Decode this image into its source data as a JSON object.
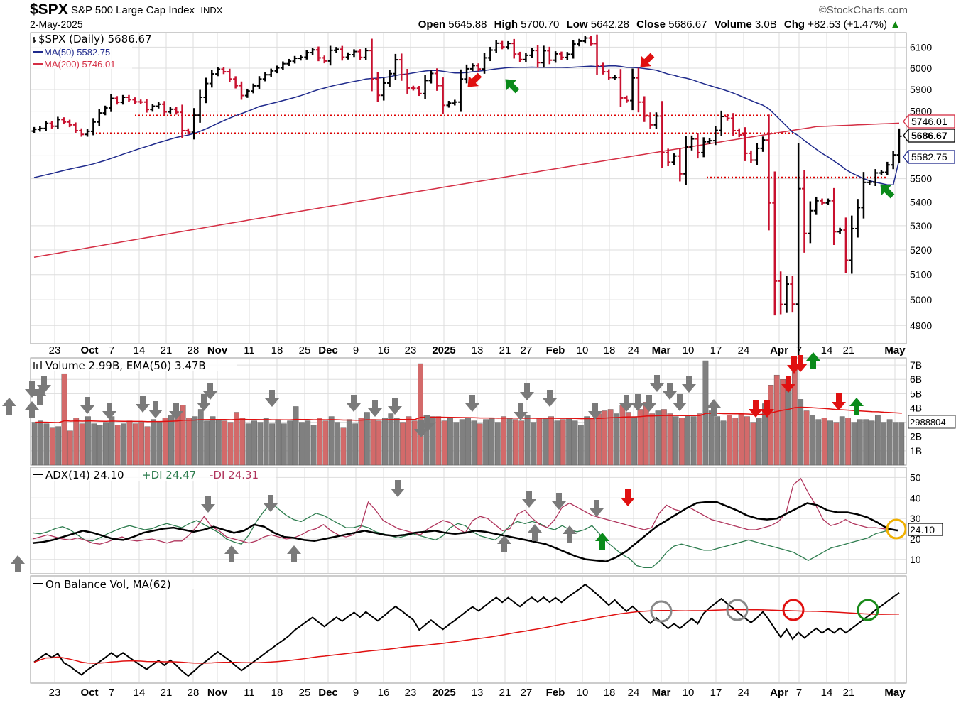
{
  "header": {
    "symbol": "$SPX",
    "name": "S&P 500 Large Cap Index",
    "exchange": "INDX",
    "date": "2-May-2025",
    "source": "©StockCharts.com",
    "stats": {
      "open_label": "Open",
      "open": "5645.88",
      "high_label": "High",
      "high": "5700.70",
      "low_label": "Low",
      "low": "5642.28",
      "close_label": "Close",
      "close": "5686.67",
      "volume_label": "Volume",
      "volume": "3.0B",
      "chg_label": "Chg",
      "chg": "+82.53 (+1.47%)"
    }
  },
  "colors": {
    "up": "#000000",
    "down": "#c8102e",
    "ma50": "#1f2a8c",
    "ma200": "#d42e44",
    "grid": "#dddddd",
    "vol_up": "#808080",
    "vol_down": "#d36a6a",
    "plus_di": "#2e7d4f",
    "minus_di": "#b0345c",
    "arrow_green": "#0a8a1a",
    "arrow_red": "#e01010",
    "arrow_gray": "#7a7a7a",
    "circle_gray": "#888888",
    "circle_red": "#e01010",
    "circle_green": "#1a8a1a",
    "circle_yellow": "#f0b000"
  },
  "chart_data": [
    {
      "type": "line",
      "panel": "price",
      "legend": [
        "$SPX (Daily) 5686.67",
        "MA(50) 5582.75",
        "MA(200) 5746.01"
      ],
      "y_ticks": [
        6100,
        6000,
        5900,
        5800,
        5700,
        5600,
        5500,
        5400,
        5300,
        5200,
        5100,
        5000,
        4900
      ],
      "ylim": [
        4830,
        6170
      ],
      "scale": "log",
      "x_labels": [
        "23",
        "Oct",
        "7",
        "14",
        "21",
        "28",
        "Nov",
        "11",
        "18",
        "25",
        "Dec",
        "9",
        "16",
        "23",
        "2025",
        "13",
        "21",
        "27",
        "Feb",
        "10",
        "18",
        "24",
        "Mar",
        "10",
        "17",
        "24",
        "Apr",
        "7",
        "14",
        "21",
        "May"
      ],
      "last_values": {
        "price": "5686.67",
        "ma50": "5582.75",
        "ma200": "5746.01"
      },
      "close_series": [
        5718,
        5722,
        5745,
        5732,
        5762,
        5751,
        5738,
        5712,
        5695,
        5709,
        5751,
        5792,
        5815,
        5859,
        5841,
        5864,
        5853,
        5843,
        5842,
        5808,
        5823,
        5832,
        5797,
        5809,
        5795,
        5712,
        5705,
        5782,
        5864,
        5928,
        5973,
        5995,
        5983,
        5949,
        5918,
        5872,
        5893,
        5917,
        5949,
        5969,
        5987,
        6001,
        6021,
        6033,
        6047,
        6052,
        6074,
        6087,
        6049,
        6034,
        6085,
        6090,
        6052,
        6064,
        6079,
        6051,
        6084,
        5949,
        5873,
        5930,
        5974,
        6040,
        5970,
        5907,
        5906,
        5881,
        5942,
        5975,
        5918,
        5827,
        5837,
        5842,
        5949,
        5997,
        6012,
        5996,
        6049,
        6086,
        6119,
        6101,
        6118,
        6067,
        6041,
        6061,
        6084,
        6026,
        6083,
        6038,
        6068,
        6051,
        6066,
        6115,
        6129,
        6144,
        6117,
        6013,
        5983,
        5955,
        5956,
        5861,
        5849,
        5954,
        5842,
        5778,
        5738,
        5778,
        5614,
        5572,
        5599,
        5521,
        5639,
        5675,
        5614,
        5662,
        5667,
        5713,
        5776,
        5768,
        5712,
        5693,
        5611,
        5581,
        5633,
        5670,
        5396,
        5074,
        4982,
        5062,
        4983,
        5457,
        5268,
        5363,
        5405,
        5396,
        5405,
        5275,
        5282,
        5158,
        5288,
        5376,
        5484,
        5485,
        5525,
        5528,
        5560,
        5604,
        5687
      ],
      "ma50_start": 5505,
      "ma50_peak": 6010,
      "ma50_end": 5582.75,
      "ma200_start": 5170,
      "ma200_end": 5746.01,
      "support_lines": [
        5780,
        5700,
        5505
      ]
    },
    {
      "type": "bar",
      "panel": "volume",
      "legend": "Volume 2.99B, EMA(50) 3.47B",
      "y_ticks": [
        "7B",
        "6B",
        "5B",
        "4B",
        "3B",
        "2B",
        "1B"
      ],
      "ylim": [
        0,
        7.5
      ],
      "last_value": "2988804",
      "volume_billions": [
        3.0,
        3.1,
        2.9,
        2.6,
        2.7,
        6.4,
        2.4,
        3.3,
        2.9,
        3.4,
        2.9,
        2.8,
        3.0,
        3.4,
        2.8,
        2.9,
        3.1,
        2.9,
        3.0,
        2.7,
        3.2,
        3.0,
        3.3,
        3.5,
        3.6,
        4.2,
        3.3,
        3.4,
        3.9,
        3.1,
        3.4,
        3.2,
        3.1,
        3.0,
        3.7,
        3.3,
        2.9,
        3.1,
        3.0,
        3.3,
        2.9,
        3.2,
        2.9,
        3.1,
        4.1,
        3.0,
        3.1,
        2.8,
        3.3,
        3.1,
        3.4,
        3.0,
        2.6,
        3.2,
        2.9,
        3.3,
        3.7,
        3.2,
        3.1,
        3.3,
        3.6,
        3.3,
        3.0,
        3.4,
        3.1,
        7.1,
        3.5,
        3.4,
        3.4,
        3.1,
        3.3,
        3.0,
        3.2,
        3.3,
        3.1,
        2.9,
        3.2,
        3.3,
        3.0,
        3.4,
        3.3,
        3.2,
        3.1,
        3.5,
        3.0,
        3.3,
        3.3,
        3.4,
        3.1,
        3.2,
        3.3,
        3.1,
        2.8,
        3.4,
        3.3,
        3.6,
        3.8,
        3.9,
        3.6,
        4.2,
        3.7,
        3.4,
        3.9,
        4.4,
        3.6,
        3.8,
        3.9,
        3.6,
        3.4,
        3.3,
        3.5,
        3.4,
        3.6,
        7.3,
        3.8,
        3.4,
        3.1,
        3.5,
        3.3,
        3.6,
        3.4,
        3.0,
        3.3,
        4.3,
        5.6,
        6.3,
        6.0,
        5.5,
        6.8,
        4.6,
        3.8,
        3.5,
        3.2,
        3.3,
        3.1,
        3.0,
        3.4,
        3.3,
        3.0,
        3.2,
        3.2,
        3.1,
        3.5,
        3.0,
        3.2,
        3.0,
        3.0
      ]
    },
    {
      "type": "line",
      "panel": "adx",
      "legend": {
        "adx": "ADX(14) 24.10",
        "plus_di": "+DI 24.47",
        "minus_di": "-DI 24.31"
      },
      "y_ticks": [
        50,
        40,
        30,
        20,
        10
      ],
      "ylim": [
        3,
        55
      ],
      "last_value": "24.10",
      "adx_series": [
        18,
        18.5,
        19.5,
        21,
        22.5,
        24,
        23,
        21.5,
        20,
        19.5,
        21,
        23,
        24,
        25,
        25.5,
        24.5,
        23.5,
        24.5,
        26,
        24.5,
        23,
        24,
        27,
        26,
        23,
        21,
        20.5,
        19.5,
        19,
        20,
        21,
        22,
        23,
        24,
        23,
        22,
        21.5,
        22,
        23,
        23.5,
        24,
        23,
        22.5,
        23,
        24,
        23.5,
        22.5,
        21.5,
        20.5,
        19.5,
        18.5,
        17.5,
        15.5,
        13.5,
        11.5,
        10,
        9.5,
        9,
        11,
        14,
        18,
        22,
        26,
        29,
        32,
        35,
        37.5,
        38,
        38,
        36,
        34,
        31.5,
        30,
        29.5,
        30,
        32.5,
        35,
        37.5,
        36.5,
        34,
        33,
        33,
        32,
        30.5,
        28,
        25,
        24.1
      ],
      "plus_di_series": [
        23,
        22.5,
        23.5,
        25,
        26,
        24.5,
        22,
        19.5,
        19,
        20.5,
        22.5,
        24,
        25.5,
        26.5,
        25.5,
        24.5,
        25,
        26.5,
        27.5,
        26.5,
        25.5,
        27.5,
        29,
        27,
        25,
        23,
        20,
        18.5,
        17.5,
        22,
        28.5,
        33.5,
        37.5,
        34.5,
        31.5,
        29.5,
        28.5,
        30.5,
        32.5,
        31.5,
        29.5,
        27.5,
        25.5,
        25.5,
        26.5,
        25.5,
        23.5,
        22.5,
        21.5,
        20.5,
        21.5,
        22.5,
        21.5,
        20.5,
        19.5,
        21.5,
        25.5,
        27.5,
        26.5,
        23.5,
        21.5,
        20.5,
        19.5,
        22.5,
        26.5,
        28.5,
        27.5,
        28.5,
        27.5,
        25.5,
        24.5,
        26.5,
        24.5,
        23.5,
        24.5,
        26.5,
        22.5,
        18.5,
        15.5,
        12.5,
        10.5,
        7,
        6,
        6,
        9,
        13.5,
        16.5,
        17.5,
        16.5,
        15.5,
        14.5,
        14.5,
        15.5,
        16.5,
        17.5,
        18.5,
        19.5,
        18.5,
        17.5,
        16.5,
        15.5,
        14.5,
        13.5,
        11.5,
        9.5,
        11.5,
        13.5,
        15.5,
        16.5,
        17.5,
        18.5,
        19.5,
        20.5,
        22.5,
        23.5,
        24.5,
        24.47
      ],
      "minus_di_series": [
        20,
        21,
        22,
        21,
        20,
        19.5,
        20.5,
        19.5,
        18,
        17.5,
        18.5,
        20,
        21,
        19.5,
        19,
        19.5,
        20,
        19,
        18,
        19,
        19,
        22,
        26,
        31,
        26,
        24,
        21,
        20,
        19,
        18,
        19,
        21,
        22,
        21,
        20,
        20.5,
        22,
        24,
        25,
        27,
        24,
        22,
        21,
        22,
        26,
        38,
        34,
        29,
        27,
        25,
        24,
        23,
        22,
        25,
        27,
        29,
        28,
        25,
        23,
        29,
        31,
        30,
        27,
        24,
        25,
        32,
        34,
        30,
        27,
        25.5,
        29.5,
        35.5,
        37.5,
        35.5,
        33.5,
        31.5,
        30.5,
        29.5,
        28.5,
        27.5,
        26.5,
        25.5,
        24.5,
        25.5,
        32.5,
        36.5,
        34.5,
        33.5,
        35.5,
        33.5,
        31.5,
        29.5,
        28.5,
        27.5,
        26.5,
        25.5,
        24.5,
        24.5,
        25.5,
        26.5,
        28.5,
        32.5,
        46.5,
        49.5,
        42.5,
        36.5,
        29.5,
        26.5,
        27.5,
        29.5,
        27.5,
        26.5,
        25.5,
        25.5,
        25,
        24.5,
        24.31
      ]
    },
    {
      "type": "line",
      "panel": "obv",
      "legend": "On Balance Vol, MA(62)"
    }
  ]
}
